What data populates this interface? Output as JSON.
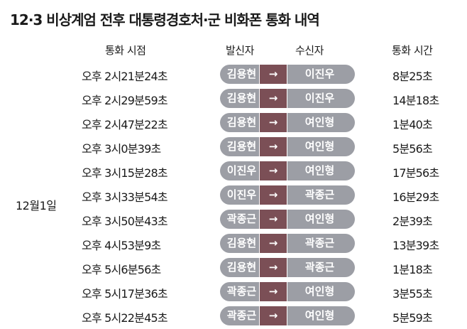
{
  "title": "12·3 비상계엄 전후 대통령경호처·군 비화폰 통화 내역",
  "headers": {
    "time": "통화 시점",
    "caller": "발신자",
    "receiver": "수신자",
    "duration": "통화 시간"
  },
  "date": "12월1일",
  "arrow": "→",
  "colors": {
    "pill": "#9c9ea5",
    "arrow_bg": "#7b4f56"
  },
  "rows": [
    {
      "time": "오후 2시21분24초",
      "caller": "김용현",
      "receiver": "이진우",
      "duration": "8분25초"
    },
    {
      "time": "오후 2시29분59초",
      "caller": "김용현",
      "receiver": "이진우",
      "duration": "14분18초"
    },
    {
      "time": "오후 2시47분22초",
      "caller": "김용현",
      "receiver": "여인형",
      "duration": "1분40초"
    },
    {
      "time": "오후 3시0분39초",
      "caller": "김용현",
      "receiver": "여인형",
      "duration": "5분56초"
    },
    {
      "time": "오후 3시15분28초",
      "caller": "이진우",
      "receiver": "여인형",
      "duration": "17분56초"
    },
    {
      "time": "오후 3시33분54초",
      "caller": "이진우",
      "receiver": "곽종근",
      "duration": "16분29초"
    },
    {
      "time": "오후 3시50분43초",
      "caller": "곽종근",
      "receiver": "여인형",
      "duration": "2분39초"
    },
    {
      "time": "오후 4시53분9초",
      "caller": "김용현",
      "receiver": "곽종근",
      "duration": "13분39초"
    },
    {
      "time": "오후 5시6분56초",
      "caller": "김용현",
      "receiver": "곽종근",
      "duration": "1분18초"
    },
    {
      "time": "오후 5시17분36초",
      "caller": "곽종근",
      "receiver": "여인형",
      "duration": "3분55초"
    },
    {
      "time": "오후 5시22분45초",
      "caller": "곽종근",
      "receiver": "여인형",
      "duration": "5분59초"
    }
  ]
}
